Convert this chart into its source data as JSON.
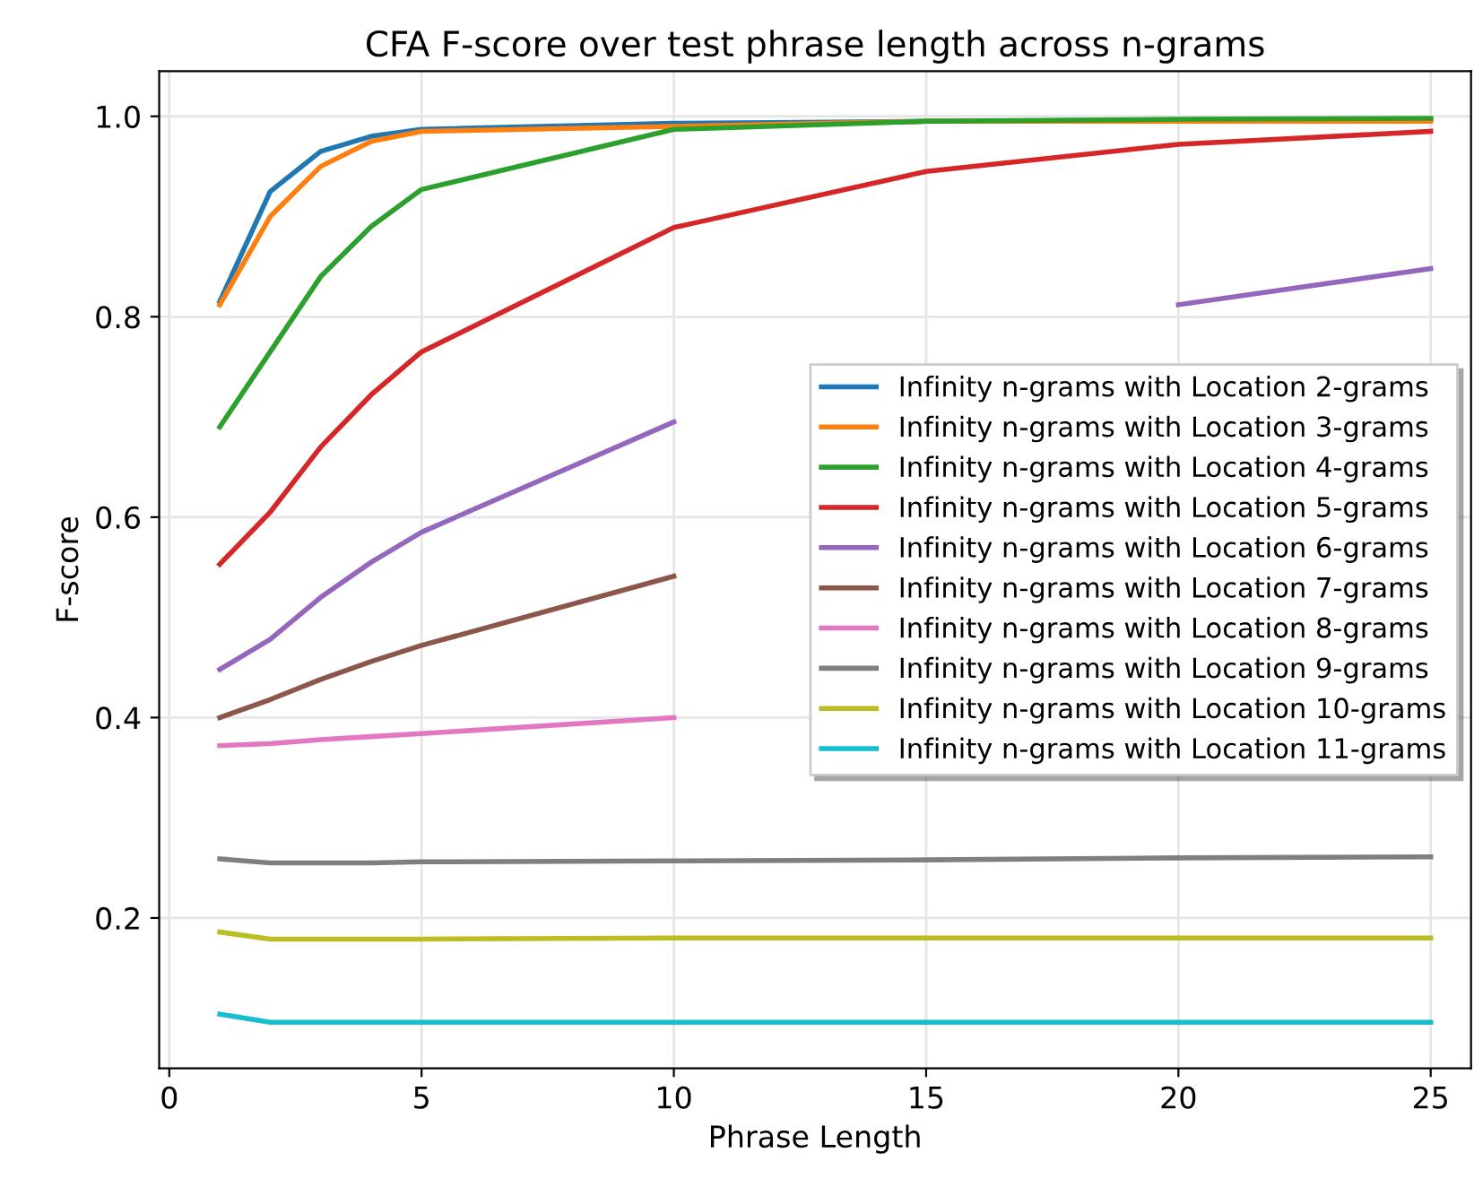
{
  "chart_data": {
    "type": "line",
    "title": "CFA F-score over test phrase length across n-grams",
    "xlabel": "Phrase Length",
    "ylabel": "F-score",
    "x": [
      1,
      2,
      3,
      4,
      5,
      10,
      15,
      20,
      25
    ],
    "series": [
      {
        "name": "Infinity n-grams with Location 2-grams",
        "color": "#1f77b4",
        "values": [
          0.815,
          0.925,
          0.965,
          0.98,
          0.987,
          0.993,
          0.995,
          0.996,
          0.997
        ]
      },
      {
        "name": "Infinity n-grams with Location 3-grams",
        "color": "#ff7f0e",
        "values": [
          0.812,
          0.9,
          0.95,
          0.975,
          0.985,
          0.99,
          0.995,
          0.995,
          0.995
        ]
      },
      {
        "name": "Infinity n-grams with Location 4-grams",
        "color": "#2ca02c",
        "values": [
          0.69,
          0.765,
          0.84,
          0.89,
          0.927,
          0.987,
          0.995,
          0.997,
          0.998
        ]
      },
      {
        "name": "Infinity n-grams with Location 5-grams",
        "color": "#d62728",
        "values": [
          0.553,
          0.605,
          0.67,
          0.722,
          0.765,
          0.889,
          0.945,
          0.972,
          0.985
        ]
      },
      {
        "name": "Infinity n-grams with Location 6-grams",
        "color": "#9467bd",
        "values": [
          0.448,
          0.478,
          0.52,
          0.555,
          0.585,
          0.695,
          null,
          0.812,
          0.848
        ]
      },
      {
        "name": "Infinity n-grams with Location 7-grams",
        "color": "#8c564b",
        "values": [
          0.4,
          0.418,
          0.438,
          0.456,
          0.472,
          0.541,
          null,
          null,
          null
        ]
      },
      {
        "name": "Infinity n-grams with Location 8-grams",
        "color": "#e377c2",
        "values": [
          0.372,
          0.374,
          0.378,
          0.381,
          0.384,
          0.4,
          null,
          null,
          null
        ]
      },
      {
        "name": "Infinity n-grams with Location 9-grams",
        "color": "#7f7f7f",
        "values": [
          0.259,
          0.255,
          0.255,
          0.255,
          0.256,
          0.257,
          0.258,
          0.26,
          0.261
        ]
      },
      {
        "name": "Infinity n-grams with Location 10-grams",
        "color": "#bcbd22",
        "values": [
          0.186,
          0.179,
          0.179,
          0.179,
          0.179,
          0.18,
          0.18,
          0.18,
          0.18
        ]
      },
      {
        "name": "Infinity n-grams with Location 11-grams",
        "color": "#17becf",
        "values": [
          0.104,
          0.096,
          0.096,
          0.096,
          0.096,
          0.096,
          0.096,
          0.096,
          0.096
        ]
      }
    ],
    "xlim": [
      -0.2,
      25.8
    ],
    "ylim": [
      0.05,
      1.045
    ],
    "xticks": [
      0,
      5,
      10,
      15,
      20,
      25
    ],
    "yticks": [
      {
        "value": 0.2,
        "label": "0.2"
      },
      {
        "value": 0.4,
        "label": "0.4"
      },
      {
        "value": 0.6,
        "label": "0.6"
      },
      {
        "value": 0.8,
        "label": "0.8"
      },
      {
        "value": 1.0,
        "label": "1.0"
      }
    ],
    "grid": true,
    "legend": "center right",
    "marker": "none",
    "line_style": "solid"
  }
}
